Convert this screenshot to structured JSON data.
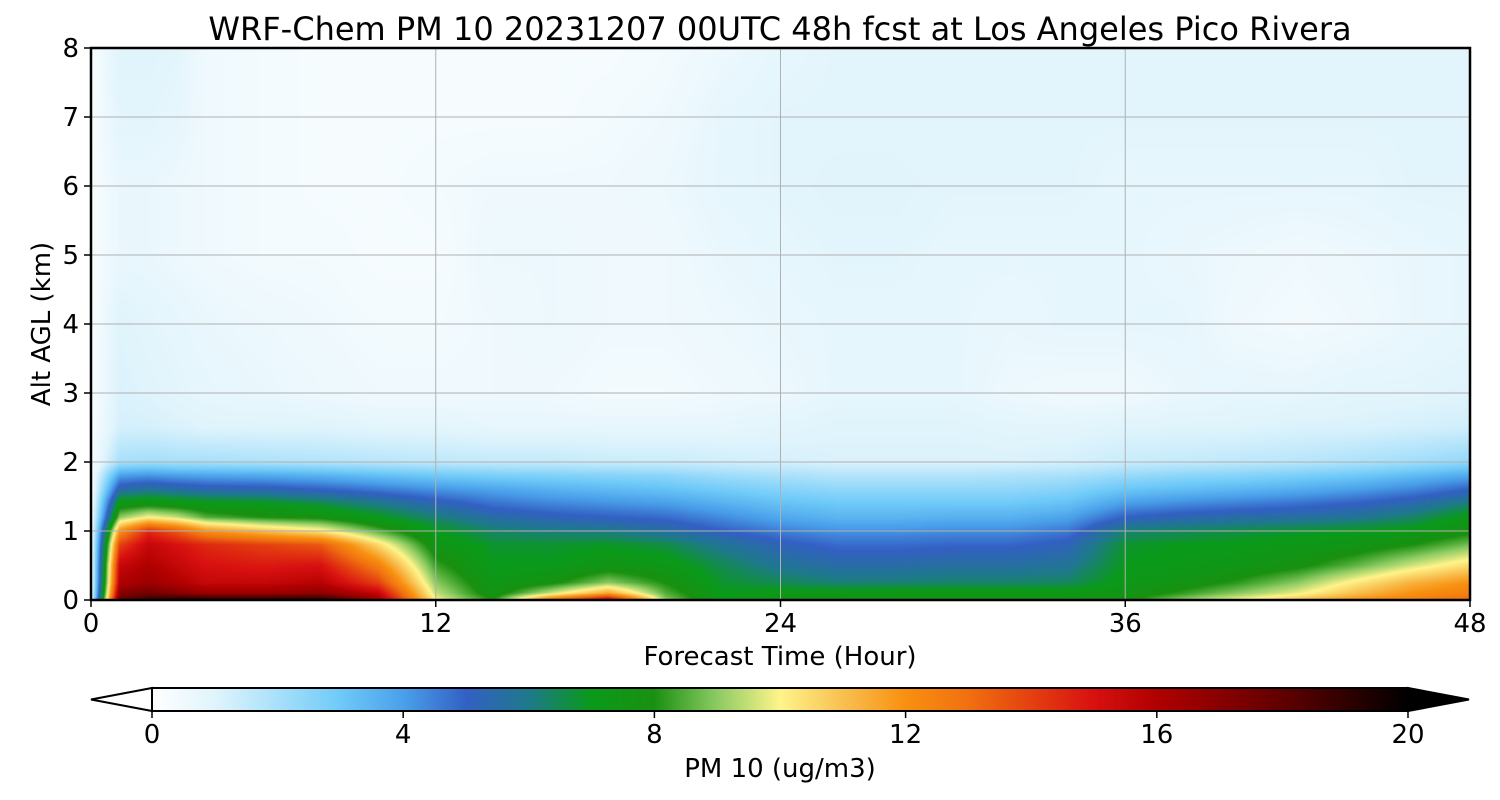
{
  "chart_data": {
    "type": "heatmap",
    "title": "WRF-Chem PM 10  20231207 00UTC 48h fcst at Los Angeles Pico Rivera",
    "xlabel": "Forecast Time (Hour)",
    "ylabel": "Alt AGL (km)",
    "xlim": [
      0,
      48
    ],
    "ylim": [
      0,
      8
    ],
    "xticks": [
      0,
      12,
      24,
      36,
      48
    ],
    "yticks": [
      0,
      1,
      2,
      3,
      4,
      5,
      6,
      7,
      8
    ],
    "grid": true,
    "colorbar": {
      "label": "PM 10  (ug/m3)",
      "range": [
        0,
        20
      ],
      "ticks": [
        0,
        4,
        8,
        12,
        16,
        20
      ],
      "extend": "both",
      "orientation": "horizontal",
      "placement": "bottom"
    },
    "colormap": [
      [
        0,
        "#ffffff"
      ],
      [
        1,
        "#e0f4fc"
      ],
      [
        2,
        "#a8e0fa"
      ],
      [
        3,
        "#6ecaf8"
      ],
      [
        4,
        "#4aa0ea"
      ],
      [
        5,
        "#3360c4"
      ],
      [
        6,
        "#1e7a8a"
      ],
      [
        7,
        "#0a9a1a"
      ],
      [
        8,
        "#1a9010"
      ],
      [
        9,
        "#8ccb62"
      ],
      [
        10,
        "#fff48a"
      ],
      [
        11,
        "#f8c050"
      ],
      [
        12,
        "#f89010"
      ],
      [
        13,
        "#f07010"
      ],
      [
        15,
        "#d81010"
      ],
      [
        16,
        "#b00000"
      ],
      [
        18,
        "#600000"
      ],
      [
        20,
        "#000000"
      ]
    ],
    "hours": [
      0,
      1,
      2,
      3,
      4,
      6,
      8,
      10,
      12,
      14,
      16,
      18,
      20,
      22,
      24,
      26,
      28,
      30,
      32,
      34,
      36,
      38,
      40,
      42,
      44,
      46,
      48
    ],
    "altitudes_km": [
      0,
      0.1,
      0.25,
      0.5,
      0.8,
      1.0,
      1.2,
      1.4,
      1.6,
      1.8,
      2.0,
      2.5,
      3,
      4,
      5,
      6,
      7,
      8
    ],
    "pm10": [
      [
        0.5,
        18.0,
        19.0,
        19.5,
        19.5,
        19.5,
        19.5,
        16.5,
        10.0,
        8.0,
        13.0,
        16.0,
        9.0,
        7.0,
        7.5,
        7.5,
        7.5,
        7.5,
        7.5,
        7.5,
        7.8,
        9.0,
        10.0,
        11.0,
        12.0,
        12.5,
        13.0
      ],
      [
        0.3,
        17.0,
        17.5,
        17.0,
        16.5,
        16.5,
        16.8,
        15.5,
        9.5,
        7.5,
        9.5,
        11.5,
        8.5,
        7.0,
        7.2,
        7.3,
        7.4,
        7.4,
        7.4,
        7.4,
        7.5,
        8.2,
        9.0,
        9.8,
        11.0,
        12.0,
        12.5
      ],
      [
        0.2,
        16.0,
        16.5,
        16.0,
        15.5,
        15.5,
        15.8,
        14.0,
        9.0,
        7.3,
        7.8,
        9.0,
        8.0,
        6.8,
        6.5,
        6.2,
        6.2,
        6.3,
        6.3,
        6.4,
        7.2,
        7.6,
        8.2,
        9.0,
        10.2,
        11.3,
        12.0
      ],
      [
        0.2,
        15.5,
        16.0,
        15.5,
        15.0,
        14.8,
        15.0,
        12.5,
        8.3,
        7.0,
        7.0,
        7.5,
        7.3,
        6.5,
        5.8,
        5.5,
        5.5,
        5.6,
        5.6,
        5.8,
        7.0,
        7.2,
        7.4,
        7.8,
        8.6,
        9.6,
        10.5
      ],
      [
        0.2,
        14.0,
        15.5,
        15.0,
        14.5,
        14.0,
        13.5,
        10.5,
        7.5,
        6.8,
        6.8,
        6.9,
        6.6,
        5.8,
        5.2,
        4.8,
        4.8,
        4.9,
        4.9,
        5.2,
        6.8,
        7.0,
        7.1,
        7.3,
        7.5,
        8.0,
        8.8
      ],
      [
        0.2,
        12.0,
        14.5,
        13.5,
        12.0,
        11.0,
        10.2,
        8.5,
        7.0,
        6.3,
        6.1,
        6.0,
        5.6,
        5.0,
        4.5,
        4.2,
        4.2,
        4.3,
        4.3,
        4.6,
        6.2,
        6.4,
        6.6,
        6.8,
        7.0,
        7.2,
        7.8
      ],
      [
        0.2,
        9.0,
        10.0,
        9.5,
        8.5,
        8.0,
        7.8,
        7.0,
        6.2,
        5.5,
        5.2,
        5.0,
        4.8,
        4.3,
        3.8,
        3.5,
        3.5,
        3.6,
        3.6,
        3.9,
        5.0,
        5.3,
        5.5,
        5.6,
        5.8,
        6.3,
        7.2
      ],
      [
        0.2,
        7.4,
        7.6,
        7.4,
        7.2,
        7.0,
        6.6,
        6.0,
        5.3,
        4.7,
        4.4,
        4.2,
        4.0,
        3.6,
        3.2,
        3.0,
        3.0,
        3.0,
        3.0,
        3.2,
        4.0,
        4.3,
        4.5,
        4.7,
        5.0,
        5.4,
        6.2
      ],
      [
        0.2,
        5.5,
        5.8,
        5.6,
        5.4,
        5.3,
        5.0,
        4.6,
        4.2,
        3.9,
        3.6,
        3.4,
        3.2,
        2.9,
        2.6,
        2.4,
        2.4,
        2.4,
        2.4,
        2.6,
        3.1,
        3.3,
        3.5,
        3.7,
        4.0,
        4.4,
        5.0
      ],
      [
        0.2,
        4.0,
        4.2,
        4.0,
        3.9,
        3.8,
        3.6,
        3.3,
        3.0,
        2.8,
        2.7,
        2.6,
        2.5,
        2.2,
        2.0,
        1.8,
        1.8,
        1.8,
        1.9,
        2.0,
        2.3,
        2.5,
        2.6,
        2.8,
        3.0,
        3.4,
        3.8
      ],
      [
        0.2,
        2.0,
        2.1,
        2.0,
        2.0,
        1.9,
        1.8,
        1.7,
        1.6,
        1.5,
        1.5,
        1.4,
        1.4,
        1.3,
        1.2,
        1.1,
        1.1,
        1.1,
        1.1,
        1.2,
        1.4,
        1.5,
        1.6,
        1.7,
        1.9,
        2.1,
        2.4
      ],
      [
        0.2,
        1.2,
        1.2,
        1.1,
        1.0,
        1.0,
        1.0,
        0.9,
        0.9,
        0.8,
        0.8,
        0.8,
        0.8,
        0.8,
        0.9,
        1.0,
        1.0,
        1.0,
        0.9,
        0.9,
        1.0,
        1.0,
        1.0,
        1.1,
        1.1,
        1.2,
        1.3
      ],
      [
        0.2,
        1.1,
        1.0,
        0.9,
        0.8,
        0.7,
        0.6,
        0.5,
        0.5,
        0.5,
        0.5,
        0.4,
        0.4,
        0.5,
        0.6,
        0.8,
        0.8,
        0.8,
        0.6,
        0.5,
        0.5,
        0.7,
        0.8,
        0.8,
        0.9,
        0.9,
        1.0
      ],
      [
        0.2,
        1.0,
        0.9,
        0.8,
        0.7,
        0.6,
        0.5,
        0.4,
        0.4,
        0.5,
        0.6,
        0.5,
        0.5,
        0.6,
        0.7,
        0.8,
        0.8,
        0.8,
        0.7,
        0.8,
        0.8,
        0.8,
        0.5,
        0.4,
        0.5,
        0.7,
        0.8
      ],
      [
        0.2,
        0.7,
        0.7,
        0.6,
        0.5,
        0.4,
        0.4,
        0.3,
        0.3,
        0.6,
        0.6,
        0.5,
        0.5,
        0.7,
        0.8,
        0.9,
        0.9,
        0.8,
        0.8,
        0.8,
        0.8,
        0.7,
        0.6,
        0.5,
        0.6,
        0.7,
        0.8
      ],
      [
        0.2,
        0.7,
        0.7,
        0.6,
        0.5,
        0.4,
        0.3,
        0.3,
        0.4,
        0.5,
        0.5,
        0.5,
        0.6,
        0.8,
        0.9,
        1.0,
        1.0,
        0.9,
        0.9,
        0.9,
        0.8,
        0.8,
        0.8,
        0.8,
        0.8,
        0.9,
        0.9
      ],
      [
        0.2,
        0.9,
        0.9,
        0.8,
        0.5,
        0.4,
        0.3,
        0.3,
        0.3,
        0.3,
        0.3,
        0.4,
        0.5,
        0.8,
        0.9,
        0.9,
        0.9,
        0.9,
        0.9,
        0.9,
        0.9,
        0.9,
        0.9,
        0.9,
        0.9,
        0.9,
        0.9
      ],
      [
        0.2,
        1.0,
        1.0,
        0.9,
        0.5,
        0.4,
        0.3,
        0.3,
        0.3,
        0.3,
        0.3,
        0.3,
        0.4,
        0.6,
        0.8,
        0.9,
        0.9,
        0.9,
        0.9,
        0.9,
        0.9,
        0.9,
        0.9,
        0.9,
        0.9,
        0.9,
        0.9
      ]
    ]
  }
}
